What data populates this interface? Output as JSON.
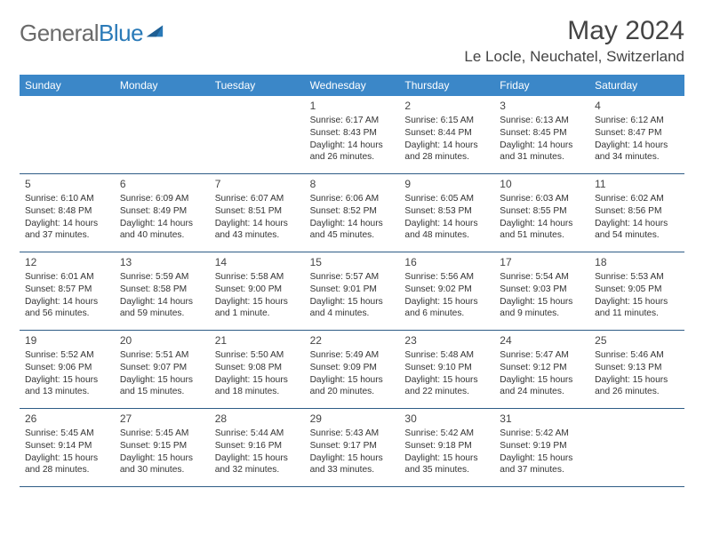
{
  "logo": {
    "text1": "General",
    "text2": "Blue"
  },
  "title": "May 2024",
  "location": "Le Locle, Neuchatel, Switzerland",
  "colors": {
    "headerBar": "#3b87c8",
    "rowBorder": "#2f5d86",
    "logoGray": "#6a6a6a",
    "logoBlue": "#2a7ab8"
  },
  "weekdays": [
    "Sunday",
    "Monday",
    "Tuesday",
    "Wednesday",
    "Thursday",
    "Friday",
    "Saturday"
  ],
  "weeks": [
    [
      {
        "day": "",
        "sunrise": "",
        "sunset": "",
        "daylight": ""
      },
      {
        "day": "",
        "sunrise": "",
        "sunset": "",
        "daylight": ""
      },
      {
        "day": "",
        "sunrise": "",
        "sunset": "",
        "daylight": ""
      },
      {
        "day": "1",
        "sunrise": "6:17 AM",
        "sunset": "8:43 PM",
        "daylight": "14 hours and 26 minutes."
      },
      {
        "day": "2",
        "sunrise": "6:15 AM",
        "sunset": "8:44 PM",
        "daylight": "14 hours and 28 minutes."
      },
      {
        "day": "3",
        "sunrise": "6:13 AM",
        "sunset": "8:45 PM",
        "daylight": "14 hours and 31 minutes."
      },
      {
        "day": "4",
        "sunrise": "6:12 AM",
        "sunset": "8:47 PM",
        "daylight": "14 hours and 34 minutes."
      }
    ],
    [
      {
        "day": "5",
        "sunrise": "6:10 AM",
        "sunset": "8:48 PM",
        "daylight": "14 hours and 37 minutes."
      },
      {
        "day": "6",
        "sunrise": "6:09 AM",
        "sunset": "8:49 PM",
        "daylight": "14 hours and 40 minutes."
      },
      {
        "day": "7",
        "sunrise": "6:07 AM",
        "sunset": "8:51 PM",
        "daylight": "14 hours and 43 minutes."
      },
      {
        "day": "8",
        "sunrise": "6:06 AM",
        "sunset": "8:52 PM",
        "daylight": "14 hours and 45 minutes."
      },
      {
        "day": "9",
        "sunrise": "6:05 AM",
        "sunset": "8:53 PM",
        "daylight": "14 hours and 48 minutes."
      },
      {
        "day": "10",
        "sunrise": "6:03 AM",
        "sunset": "8:55 PM",
        "daylight": "14 hours and 51 minutes."
      },
      {
        "day": "11",
        "sunrise": "6:02 AM",
        "sunset": "8:56 PM",
        "daylight": "14 hours and 54 minutes."
      }
    ],
    [
      {
        "day": "12",
        "sunrise": "6:01 AM",
        "sunset": "8:57 PM",
        "daylight": "14 hours and 56 minutes."
      },
      {
        "day": "13",
        "sunrise": "5:59 AM",
        "sunset": "8:58 PM",
        "daylight": "14 hours and 59 minutes."
      },
      {
        "day": "14",
        "sunrise": "5:58 AM",
        "sunset": "9:00 PM",
        "daylight": "15 hours and 1 minute."
      },
      {
        "day": "15",
        "sunrise": "5:57 AM",
        "sunset": "9:01 PM",
        "daylight": "15 hours and 4 minutes."
      },
      {
        "day": "16",
        "sunrise": "5:56 AM",
        "sunset": "9:02 PM",
        "daylight": "15 hours and 6 minutes."
      },
      {
        "day": "17",
        "sunrise": "5:54 AM",
        "sunset": "9:03 PM",
        "daylight": "15 hours and 9 minutes."
      },
      {
        "day": "18",
        "sunrise": "5:53 AM",
        "sunset": "9:05 PM",
        "daylight": "15 hours and 11 minutes."
      }
    ],
    [
      {
        "day": "19",
        "sunrise": "5:52 AM",
        "sunset": "9:06 PM",
        "daylight": "15 hours and 13 minutes."
      },
      {
        "day": "20",
        "sunrise": "5:51 AM",
        "sunset": "9:07 PM",
        "daylight": "15 hours and 15 minutes."
      },
      {
        "day": "21",
        "sunrise": "5:50 AM",
        "sunset": "9:08 PM",
        "daylight": "15 hours and 18 minutes."
      },
      {
        "day": "22",
        "sunrise": "5:49 AM",
        "sunset": "9:09 PM",
        "daylight": "15 hours and 20 minutes."
      },
      {
        "day": "23",
        "sunrise": "5:48 AM",
        "sunset": "9:10 PM",
        "daylight": "15 hours and 22 minutes."
      },
      {
        "day": "24",
        "sunrise": "5:47 AM",
        "sunset": "9:12 PM",
        "daylight": "15 hours and 24 minutes."
      },
      {
        "day": "25",
        "sunrise": "5:46 AM",
        "sunset": "9:13 PM",
        "daylight": "15 hours and 26 minutes."
      }
    ],
    [
      {
        "day": "26",
        "sunrise": "5:45 AM",
        "sunset": "9:14 PM",
        "daylight": "15 hours and 28 minutes."
      },
      {
        "day": "27",
        "sunrise": "5:45 AM",
        "sunset": "9:15 PM",
        "daylight": "15 hours and 30 minutes."
      },
      {
        "day": "28",
        "sunrise": "5:44 AM",
        "sunset": "9:16 PM",
        "daylight": "15 hours and 32 minutes."
      },
      {
        "day": "29",
        "sunrise": "5:43 AM",
        "sunset": "9:17 PM",
        "daylight": "15 hours and 33 minutes."
      },
      {
        "day": "30",
        "sunrise": "5:42 AM",
        "sunset": "9:18 PM",
        "daylight": "15 hours and 35 minutes."
      },
      {
        "day": "31",
        "sunrise": "5:42 AM",
        "sunset": "9:19 PM",
        "daylight": "15 hours and 37 minutes."
      },
      {
        "day": "",
        "sunrise": "",
        "sunset": "",
        "daylight": ""
      }
    ]
  ],
  "labels": {
    "sunrise": "Sunrise:",
    "sunset": "Sunset:",
    "daylight": "Daylight:"
  }
}
